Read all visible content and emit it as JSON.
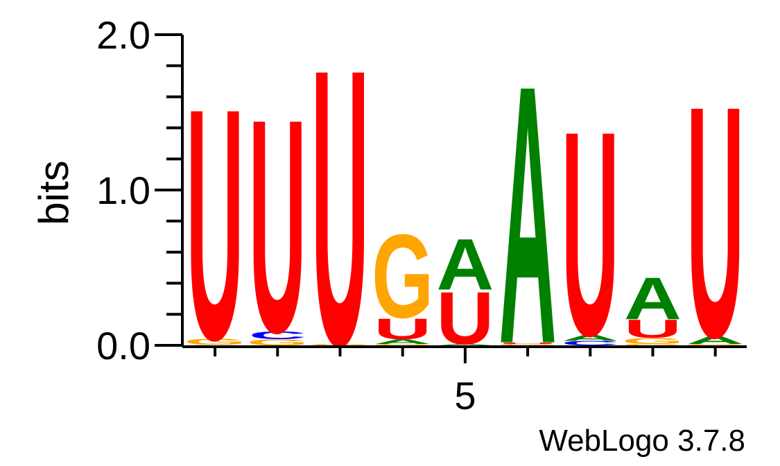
{
  "chart_data": {
    "type": "sequence_logo",
    "ylabel": "bits",
    "ylim": [
      0,
      2
    ],
    "yticks": [
      "0.0",
      "1.0",
      "2.0"
    ],
    "xticks": [
      {
        "position": 5,
        "label": "5"
      }
    ],
    "footer": "WebLogo 3.7.8",
    "colors": {
      "U": "#ff0000",
      "G": "#ffa500",
      "A": "#008000",
      "C": "#0000ff"
    },
    "positions": [
      {
        "pos": 1,
        "stack": [
          {
            "letter": "A",
            "bits": 0.004
          },
          {
            "letter": "G",
            "bits": 0.04
          },
          {
            "letter": "U",
            "bits": 1.55
          }
        ]
      },
      {
        "pos": 2,
        "stack": [
          {
            "letter": "G",
            "bits": 0.04
          },
          {
            "letter": "C",
            "bits": 0.05
          },
          {
            "letter": "U",
            "bits": 1.43
          }
        ]
      },
      {
        "pos": 3,
        "stack": [
          {
            "letter": "G",
            "bits": 0.01
          },
          {
            "letter": "U",
            "bits": 1.85
          }
        ]
      },
      {
        "pos": 4,
        "stack": [
          {
            "letter": "G",
            "bits": 0.01
          },
          {
            "letter": "A",
            "bits": 0.03
          },
          {
            "letter": "U",
            "bits": 0.14
          },
          {
            "letter": "G",
            "bits": 0.56
          }
        ]
      },
      {
        "pos": 5,
        "stack": [
          {
            "letter": "A",
            "bits": 0.01
          },
          {
            "letter": "U",
            "bits": 0.35
          },
          {
            "letter": "A",
            "bits": 0.34
          }
        ]
      },
      {
        "pos": 6,
        "stack": [
          {
            "letter": "G",
            "bits": 0.01
          },
          {
            "letter": "U",
            "bits": 0.01
          },
          {
            "letter": "A",
            "bits": 1.73
          }
        ]
      },
      {
        "pos": 7,
        "stack": [
          {
            "letter": "C",
            "bits": 0.03
          },
          {
            "letter": "A",
            "bits": 0.04
          },
          {
            "letter": "U",
            "bits": 1.37
          }
        ]
      },
      {
        "pos": 8,
        "stack": [
          {
            "letter": "G",
            "bits": 0.01
          },
          {
            "letter": "G",
            "bits": 0.04
          },
          {
            "letter": "U",
            "bits": 0.12
          },
          {
            "letter": "A",
            "bits": 0.28
          }
        ]
      },
      {
        "pos": 9,
        "stack": [
          {
            "letter": "G",
            "bits": 0.01
          },
          {
            "letter": "A",
            "bits": 0.05
          },
          {
            "letter": "U",
            "bits": 1.55
          }
        ]
      }
    ]
  }
}
